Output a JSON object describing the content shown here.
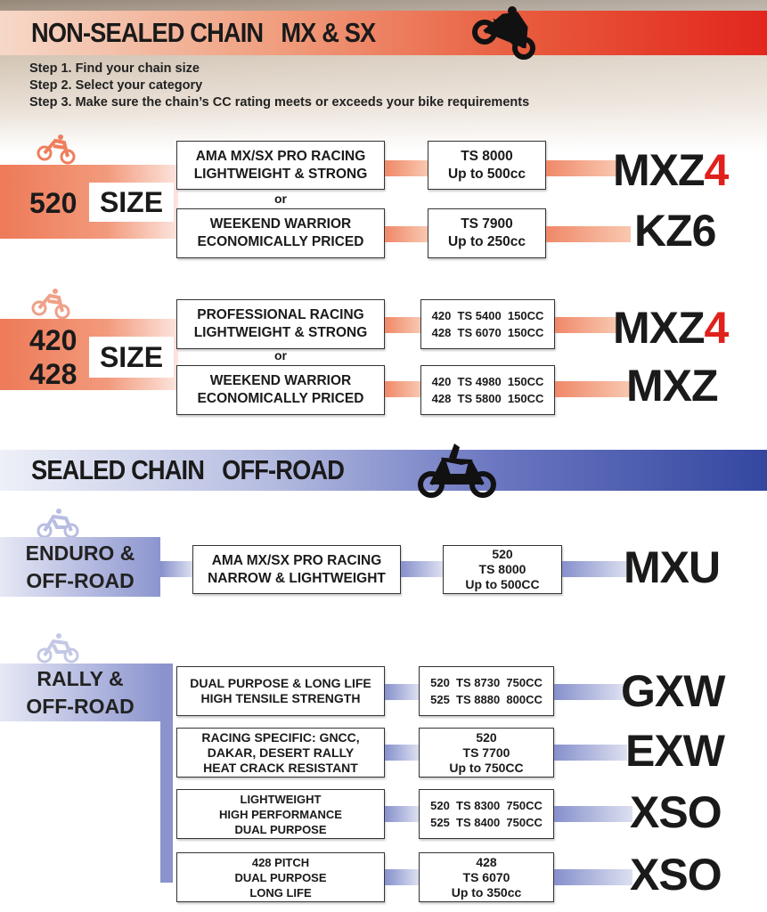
{
  "non_sealed": {
    "title": "NON-SEALED CHAIN   MX & SX",
    "steps": [
      "Step 1. Find your chain size",
      "Step 2. Select your category",
      "Step 3. Make sure the chain’s CC rating meets or exceeds your bike requirements"
    ],
    "or_label": "or",
    "size520": {
      "number": "520",
      "size_label": "SIZE",
      "rows": [
        {
          "category": [
            "AMA MX/SX PRO RACING",
            "LIGHTWEIGHT & STRONG"
          ],
          "spec": [
            "TS 8000",
            "Up to 500cc"
          ],
          "product": "MXZ",
          "product_suffix": "4"
        },
        {
          "category": [
            "WEEKEND WARRIOR",
            "ECONOMICALLY PRICED"
          ],
          "spec": [
            "TS 7900",
            "Up to 250cc"
          ],
          "product": "KZ6"
        }
      ]
    },
    "size420": {
      "number_a": "420",
      "number_b": "428",
      "size_label": "SIZE",
      "rows": [
        {
          "category": [
            "PROFESSIONAL RACING",
            "LIGHTWEIGHT & STRONG"
          ],
          "spec": [
            "420  TS 5400  150CC",
            "428  TS 6070  150CC"
          ],
          "product": "MXZ",
          "product_suffix": "4"
        },
        {
          "category": [
            "WEEKEND WARRIOR",
            "ECONOMICALLY PRICED"
          ],
          "spec": [
            "420  TS 4980  150CC",
            "428  TS 5800  150CC"
          ],
          "product": "MXZ"
        }
      ]
    }
  },
  "sealed": {
    "title": "SEALED CHAIN   OFF-ROAD",
    "enduro": {
      "label": [
        "ENDURO &",
        "OFF-ROAD"
      ],
      "row": {
        "category": [
          "AMA MX/SX PRO RACING",
          "NARROW & LIGHTWEIGHT"
        ],
        "spec": [
          "520",
          "TS 8000",
          "Up to 500CC"
        ],
        "product": "MXU"
      }
    },
    "rally": {
      "label": [
        "RALLY &",
        "OFF-ROAD"
      ],
      "rows": [
        {
          "category": [
            "DUAL PURPOSE & LONG LIFE",
            "HIGH TENSILE STRENGTH"
          ],
          "spec": [
            "520  TS 8730  750CC",
            "525  TS 8880  800CC"
          ],
          "product": "GXW"
        },
        {
          "category": [
            "RACING SPECIFIC: GNCC,",
            "DAKAR, DESERT RALLY",
            "HEAT CRACK RESISTANT"
          ],
          "spec": [
            "520",
            "TS 7700",
            "Up to 750CC"
          ],
          "product": "EXW"
        },
        {
          "category": [
            "LIGHTWEIGHT",
            "HIGH PERFORMANCE",
            "DUAL PURPOSE"
          ],
          "spec": [
            "520  TS 8300  750CC",
            "525  TS 8400  750CC"
          ],
          "product": "XSO"
        },
        {
          "category": [
            "428 PITCH",
            "DUAL PURPOSE",
            "LONG LIFE"
          ],
          "spec": [
            "428",
            "TS 6070",
            "Up to 350cc"
          ],
          "product": "XSO"
        }
      ]
    }
  },
  "colors": {
    "red_accent": "#e2261e",
    "orange": "#ee7a58",
    "blue": "#3447a0",
    "blue_light": "#8a93cc"
  },
  "icons": [
    "motocross-bike-icon",
    "dirt-bike-icon"
  ]
}
